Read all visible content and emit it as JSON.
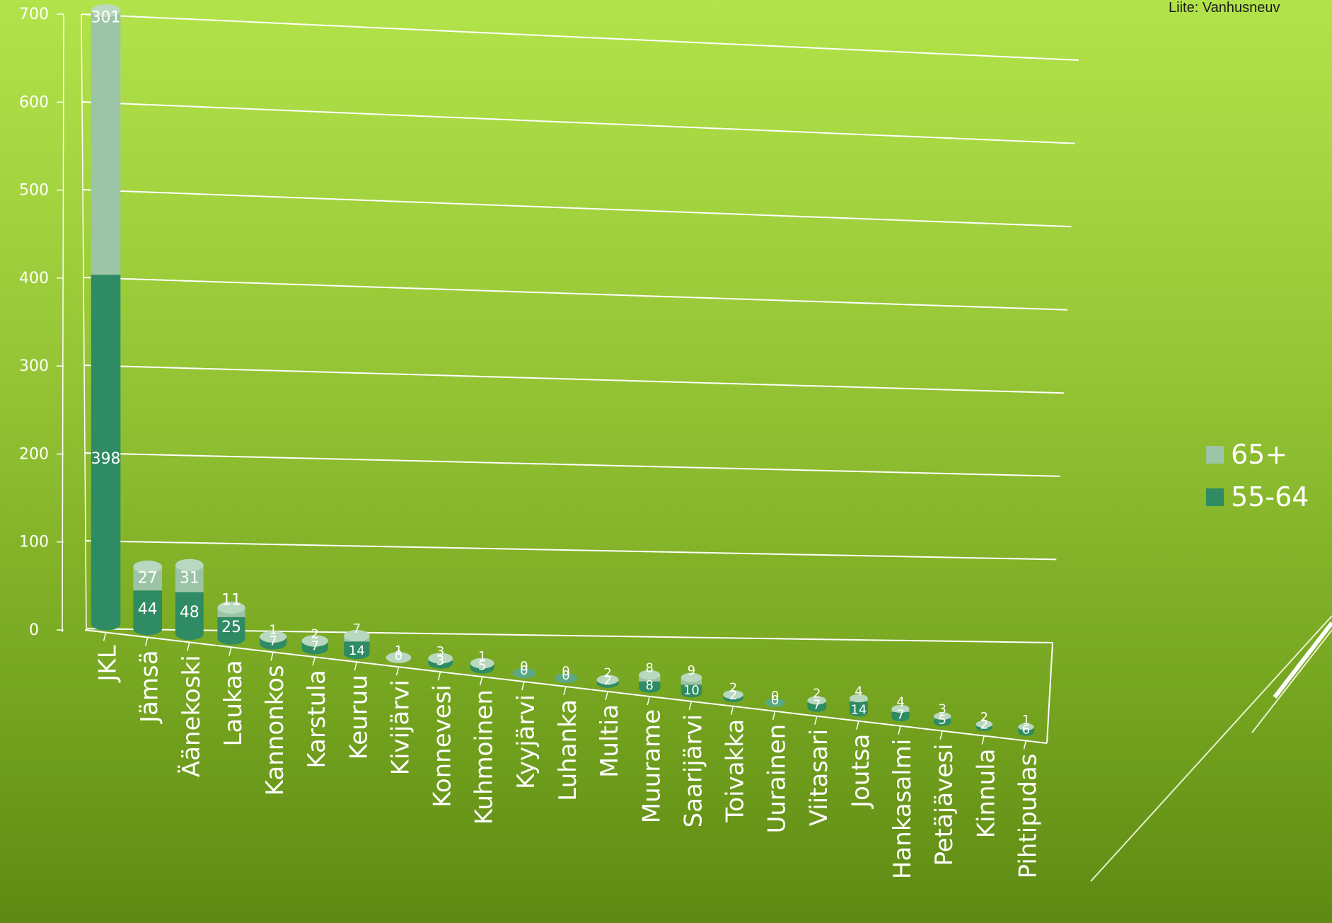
{
  "header_note": "Liite: Vanhusneuv",
  "colors": {
    "series_65": "#9cc4a6",
    "series_55": "#2e8b63",
    "grid": "#ffffff",
    "text": "#ffffff"
  },
  "legend": [
    {
      "name": "65+",
      "color": "#9cc4a6"
    },
    {
      "name": "55-64",
      "color": "#2e8b63"
    }
  ],
  "chart_data": {
    "type": "bar",
    "stacked": true,
    "three_d": true,
    "categories": [
      "JKL",
      "Jämsä",
      "Äänekoski",
      "Laukaa",
      "Kannonkos",
      "Karstula",
      "Keuruu",
      "Kivijärvi",
      "Konnevesi",
      "Kuhmoinen",
      "Kyyjärvi",
      "Luhanka",
      "Multia",
      "Muurame",
      "Saarijärvi",
      "Toivakka",
      "Uurainen",
      "Viitasari",
      "Joutsa",
      "Hankasalmi",
      "Petäjävesi",
      "Kinnula",
      "Pihtipudas"
    ],
    "series": [
      {
        "name": "55-64",
        "values": [
          398,
          44,
          48,
          25,
          7,
          7,
          14,
          0,
          3,
          5,
          0,
          0,
          2,
          8,
          10,
          2,
          0,
          7,
          14,
          7,
          5,
          2,
          6
        ]
      },
      {
        "name": "65+",
        "values": [
          301,
          27,
          31,
          11,
          1,
          2,
          7,
          1,
          3,
          1,
          0,
          0,
          2,
          8,
          9,
          2,
          0,
          2,
          4,
          4,
          3,
          2,
          1
        ]
      }
    ],
    "y_ticks": [
      "0",
      "100",
      "200",
      "300",
      "400",
      "500",
      "600",
      "700"
    ],
    "ylim": [
      0,
      700
    ],
    "grid": true,
    "legend_position": "right"
  }
}
